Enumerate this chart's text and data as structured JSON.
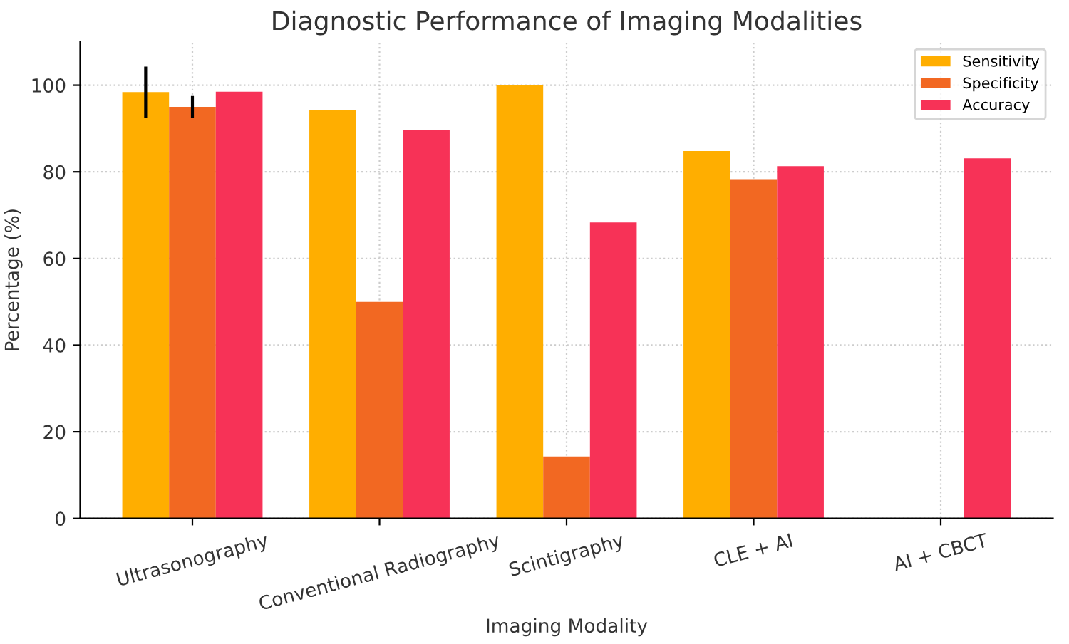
{
  "chart_data": {
    "type": "bar",
    "title": "Diagnostic Performance of Imaging Modalities",
    "xlabel": "Imaging Modality",
    "ylabel": "Percentage (%)",
    "categories": [
      "Ultrasonography",
      "Conventional Radiography",
      "Scintigraphy",
      "CLE + AI",
      "AI + CBCT"
    ],
    "series": [
      {
        "name": "Sensitivity",
        "color": "#ffae00",
        "values": [
          98.4,
          94.2,
          100,
          84.8,
          null
        ],
        "errors": [
          5.9,
          null,
          null,
          null,
          null
        ]
      },
      {
        "name": "Specificity",
        "color": "#f26822",
        "values": [
          95,
          50,
          14.3,
          78.3,
          null
        ],
        "errors": [
          2.5,
          null,
          null,
          null,
          null
        ]
      },
      {
        "name": "Accuracy",
        "color": "#f73257",
        "values": [
          98.5,
          89.6,
          68.3,
          81.3,
          83.1
        ]
      }
    ],
    "ylim": [
      0,
      110
    ],
    "yticks": [
      0,
      20,
      40,
      60,
      80,
      100
    ],
    "grid": true,
    "legend": "top right"
  }
}
